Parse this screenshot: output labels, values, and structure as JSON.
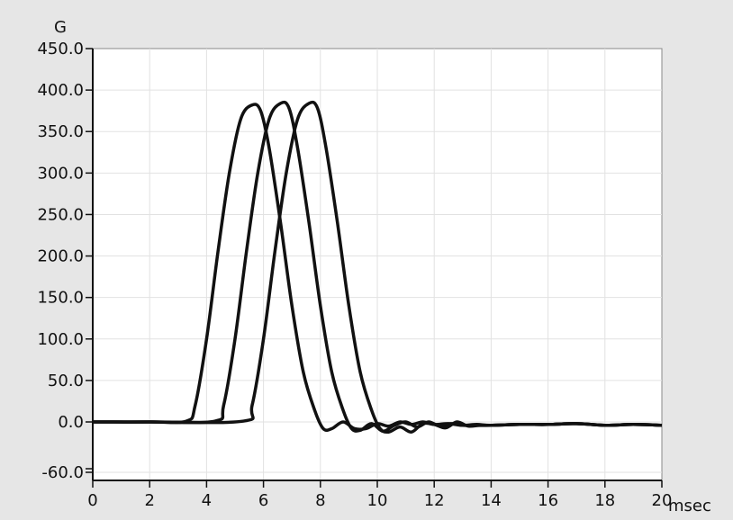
{
  "chart_data": {
    "type": "line",
    "y_unit": "G",
    "x_unit": "msec",
    "xlim": [
      0,
      20
    ],
    "ylim": [
      -60,
      450
    ],
    "x_ticks": [
      0,
      2,
      4,
      6,
      8,
      10,
      12,
      14,
      16,
      18,
      20
    ],
    "x_tick_labels": [
      "0",
      "2",
      "4",
      "6",
      "8",
      "10",
      "12",
      "14",
      "16",
      "18",
      "20"
    ],
    "y_ticks": [
      -60,
      0,
      50,
      100,
      150,
      200,
      250,
      300,
      350,
      400,
      450
    ],
    "y_tick_labels": [
      "-60.0",
      "0.0",
      "50.0",
      "100.0",
      "150.0",
      "200.0",
      "250.0",
      "300.0",
      "350.0",
      "400.0",
      "450.0"
    ],
    "grid": true,
    "legend": "none",
    "series_color": "#111111",
    "series": [
      {
        "x": [
          0,
          2,
          3.3,
          3.6,
          4.0,
          4.4,
          4.8,
          5.2,
          5.6,
          5.9,
          6.2,
          6.6,
          7.0,
          7.4,
          7.8,
          8.1,
          8.4,
          8.8,
          9.2,
          9.6,
          10.0,
          10.4,
          10.8,
          11.2,
          11.6,
          12.0,
          12.5,
          13.0,
          14,
          15,
          16,
          17,
          18,
          19,
          20
        ],
        "y": [
          0,
          0,
          1,
          20,
          100,
          205,
          300,
          365,
          382,
          375,
          330,
          240,
          140,
          60,
          14,
          -8,
          -8,
          0,
          -8,
          -8,
          -2,
          -5,
          0,
          -3,
          0,
          -3,
          -2,
          -4,
          -4,
          -3,
          -3,
          -2,
          -4,
          -3,
          -4
        ]
      },
      {
        "x": [
          0,
          2,
          4.3,
          4.6,
          5.0,
          5.4,
          5.8,
          6.2,
          6.6,
          6.9,
          7.2,
          7.6,
          8.0,
          8.4,
          8.8,
          9.1,
          9.4,
          9.8,
          10.2,
          10.6,
          11.0,
          11.4,
          11.8,
          12.2,
          12.6,
          13.0,
          13.5,
          14,
          15,
          16,
          17,
          18,
          19,
          20
        ],
        "y": [
          0,
          0,
          1,
          20,
          100,
          205,
          300,
          365,
          384,
          378,
          330,
          240,
          140,
          60,
          14,
          -8,
          -10,
          -2,
          -11,
          -4,
          0,
          -6,
          0,
          -5,
          -2,
          -4,
          -3,
          -4,
          -3,
          -3,
          -2,
          -4,
          -3,
          -4
        ]
      },
      {
        "x": [
          0,
          2,
          5.3,
          5.6,
          6.0,
          6.4,
          6.8,
          7.2,
          7.6,
          7.9,
          8.2,
          8.6,
          9.0,
          9.4,
          9.8,
          10.1,
          10.4,
          10.8,
          11.2,
          11.6,
          12.0,
          12.4,
          12.8,
          13.2,
          13.6,
          14,
          15,
          16,
          17,
          18,
          19,
          20
        ],
        "y": [
          0,
          0,
          1,
          20,
          100,
          205,
          300,
          365,
          384,
          378,
          330,
          240,
          140,
          60,
          14,
          -8,
          -12,
          -6,
          -12,
          -2,
          -3,
          -7,
          0,
          -5,
          -4,
          -4,
          -3,
          -3,
          -2,
          -4,
          -3,
          -4
        ]
      }
    ]
  }
}
